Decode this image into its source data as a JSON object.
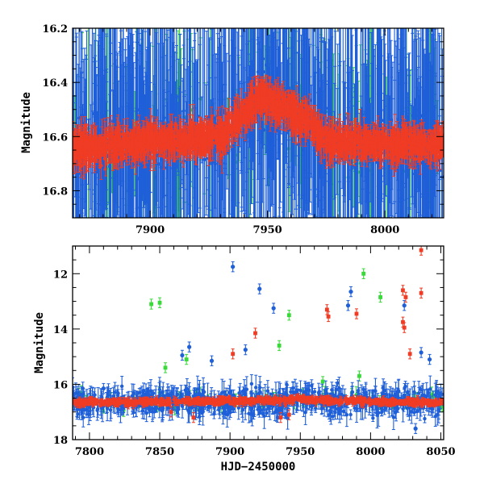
{
  "colors": {
    "blue": "#1f5fd8",
    "red": "#f03c24",
    "green": "#3ad93a",
    "axis": "#000000"
  },
  "chart_data": [
    {
      "type": "scatter",
      "title": "",
      "xlabel": "",
      "ylabel": "Magnitude",
      "xlim": [
        7867,
        8025
      ],
      "ylim": [
        16.9,
        16.2
      ],
      "y_inverted": true,
      "xticks": [
        7900,
        7950,
        8000
      ],
      "xtick_labels": [
        "7900",
        "7950",
        "8000"
      ],
      "yticks": [
        16.2,
        16.4,
        16.6,
        16.8
      ],
      "ytick_labels": [
        "16.2",
        "16.4",
        "16.6",
        "16.8"
      ],
      "series": [
        {
          "color": "blue",
          "baseline": [
            [
              7867,
              16.64
            ],
            [
              7930,
              16.6
            ],
            [
              7948,
              16.45
            ],
            [
              7968,
              16.55
            ],
            [
              7975,
              16.62
            ],
            [
              8025,
              16.63
            ]
          ]
        },
        {
          "color": "red",
          "baseline": [
            [
              7867,
              16.64
            ],
            [
              7930,
              16.6
            ],
            [
              7948,
              16.45
            ],
            [
              7968,
              16.55
            ],
            [
              7975,
              16.62
            ],
            [
              8025,
              16.63
            ]
          ]
        },
        {
          "color": "green",
          "baseline": [
            [
              7867,
              16.64
            ],
            [
              7930,
              16.6
            ],
            [
              7948,
              16.45
            ],
            [
              7968,
              16.55
            ],
            [
              7975,
              16.62
            ],
            [
              8025,
              16.63
            ]
          ]
        }
      ]
    },
    {
      "type": "scatter",
      "title": "",
      "xlabel": "HJD−2450000",
      "ylabel": "Magnitude",
      "xlim": [
        7788,
        8052
      ],
      "ylim": [
        18,
        11
      ],
      "y_inverted": true,
      "xticks": [
        7800,
        7850,
        7900,
        7950,
        8000,
        8050
      ],
      "xtick_labels": [
        "7800",
        "7850",
        "7900",
        "7950",
        "8000",
        "8050"
      ],
      "yticks": [
        12,
        14,
        16,
        18
      ],
      "ytick_labels": [
        "12",
        "14",
        "16",
        "18"
      ],
      "series": [
        {
          "color": "blue",
          "outliers": [
            [
              7902,
              11.75
            ],
            [
              7921,
              12.55
            ],
            [
              7931,
              13.25
            ],
            [
              7871,
              14.65
            ],
            [
              7866,
              14.95
            ],
            [
              7911,
              14.75
            ],
            [
              7887,
              15.15
            ],
            [
              7986,
              12.65
            ],
            [
              7984,
              13.15
            ],
            [
              8024,
              13.15
            ],
            [
              8036,
              14.85
            ],
            [
              8042,
              15.1
            ],
            [
              8032,
              17.6
            ],
            [
              7810,
              16.15
            ]
          ]
        },
        {
          "color": "red",
          "outliers": [
            [
              8036,
              11.15
            ],
            [
              8036,
              12.7
            ],
            [
              8023,
              12.6
            ],
            [
              8025,
              12.85
            ],
            [
              8023,
              13.75
            ],
            [
              8024,
              13.95
            ],
            [
              7969,
              13.3
            ],
            [
              7970,
              13.55
            ],
            [
              7990,
              13.45
            ],
            [
              7918,
              14.15
            ],
            [
              7902,
              14.9
            ],
            [
              8028,
              14.9
            ],
            [
              7936,
              17.2
            ],
            [
              7942,
              17.1
            ],
            [
              7858,
              17.0
            ],
            [
              7874,
              17.2
            ]
          ]
        },
        {
          "color": "green",
          "outliers": [
            [
              7844,
              13.1
            ],
            [
              7850,
              13.05
            ],
            [
              7995,
              12.0
            ],
            [
              8007,
              12.85
            ],
            [
              7942,
              13.5
            ],
            [
              7935,
              14.6
            ],
            [
              7869,
              15.1
            ],
            [
              7854,
              15.4
            ],
            [
              7992,
              15.7
            ],
            [
              7966,
              15.9
            ],
            [
              7798,
              16.6
            ]
          ]
        }
      ]
    }
  ]
}
